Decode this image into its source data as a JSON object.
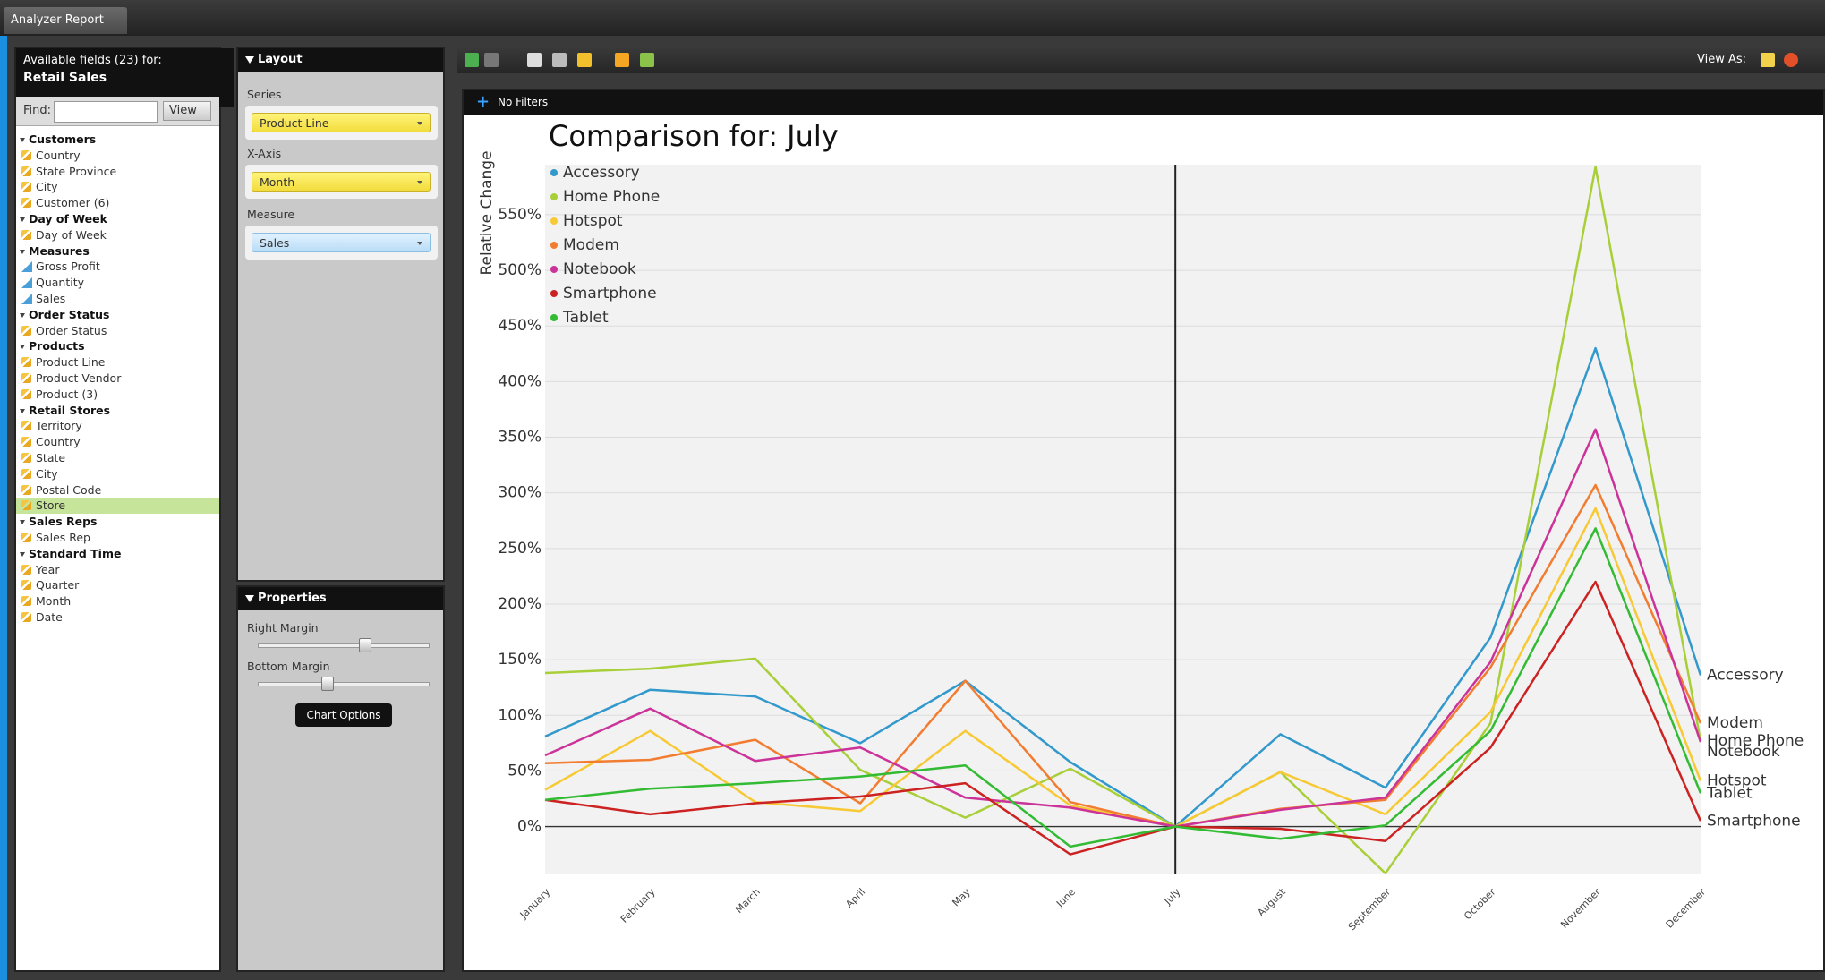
{
  "tab": "Analyzer Report",
  "fields_panel": {
    "heading": "Available fields (23) for:",
    "model": "Retail Sales",
    "find_label": "Find:",
    "view_button": "View",
    "groups": [
      {
        "name": "Customers",
        "items": [
          "Country",
          "State Province",
          "City",
          "Customer (6)"
        ]
      },
      {
        "name": "Day of Week",
        "items": [
          "Day of Week"
        ]
      },
      {
        "name": "Measures",
        "items": [
          "Gross Profit",
          "Quantity",
          "Sales"
        ]
      },
      {
        "name": "Order Status",
        "items": [
          "Order Status"
        ]
      },
      {
        "name": "Products",
        "items": [
          "Product Line",
          "Product Vendor",
          "Product (3)"
        ]
      },
      {
        "name": "Retail Stores",
        "items": [
          "Territory",
          "Country",
          "State",
          "City",
          "Postal Code",
          "Store"
        ]
      },
      {
        "name": "Sales Reps",
        "items": [
          "Sales Rep"
        ]
      },
      {
        "name": "Standard Time",
        "items": [
          "Year",
          "Quarter",
          "Month",
          "Date"
        ]
      }
    ]
  },
  "layout_panel": {
    "heading": "Layout",
    "series_label": "Series",
    "series_value": "Product Line",
    "xaxis_label": "X-Axis",
    "xaxis_value": "Month",
    "measure_label": "Measure",
    "measure_value": "Sales"
  },
  "properties_panel": {
    "heading": "Properties",
    "right_margin": "Right Margin",
    "bottom_margin": "Bottom Margin",
    "chart_options": "Chart Options"
  },
  "toolbar": {
    "view_as": "View As:"
  },
  "filter_bar": {
    "label": "No Filters"
  },
  "chart_data": {
    "type": "line",
    "title": "Comparison for: July",
    "y_label": "Relative Change",
    "categories": [
      "January",
      "February",
      "March",
      "April",
      "May",
      "June",
      "July",
      "August",
      "September",
      "October",
      "November",
      "December"
    ],
    "vline": "July",
    "series": [
      {
        "name": "Accessory",
        "color": "#3399cc",
        "values": [
          81,
          123,
          117,
          75,
          131,
          58,
          0,
          83,
          35,
          170,
          430,
          136
        ]
      },
      {
        "name": "Home Phone",
        "color": "#a8cf38",
        "values": [
          138,
          142,
          151,
          51,
          8,
          52,
          0,
          49,
          -42,
          93,
          593,
          77
        ]
      },
      {
        "name": "Hotspot",
        "color": "#f7c935",
        "values": [
          33,
          86,
          22,
          14,
          86,
          19,
          0,
          49,
          11,
          103,
          286,
          41
        ]
      },
      {
        "name": "Modem",
        "color": "#f27c30",
        "values": [
          57,
          60,
          78,
          21,
          131,
          22,
          0,
          16,
          24,
          143,
          307,
          93
        ]
      },
      {
        "name": "Notebook",
        "color": "#cc3399",
        "values": [
          64,
          106,
          59,
          71,
          26,
          17,
          0,
          15,
          26,
          148,
          357,
          76
        ]
      },
      {
        "name": "Smartphone",
        "color": "#cc2222",
        "values": [
          24,
          11,
          21,
          27,
          39,
          -25,
          0,
          -2,
          -13,
          71,
          220,
          5
        ]
      },
      {
        "name": "Tablet",
        "color": "#33bb33",
        "values": [
          24,
          34,
          39,
          45,
          55,
          -18,
          0,
          -11,
          1,
          86,
          268,
          30
        ]
      }
    ],
    "ylim": [
      -43,
      595
    ],
    "yticks": [
      {
        "value": 0,
        "label": "0%"
      },
      {
        "value": 50,
        "label": "50%"
      },
      {
        "value": 100,
        "label": "100%"
      },
      {
        "value": 150,
        "label": "150%"
      },
      {
        "value": 200,
        "label": "200%"
      },
      {
        "value": 250,
        "label": "250%"
      },
      {
        "value": 300,
        "label": "300%"
      },
      {
        "value": 350,
        "label": "350%"
      },
      {
        "value": 400,
        "label": "400%"
      },
      {
        "value": 450,
        "label": "450%"
      },
      {
        "value": 500,
        "label": "500%"
      },
      {
        "value": 550,
        "label": "550%"
      }
    ],
    "grid": true,
    "legend": "top-left"
  }
}
